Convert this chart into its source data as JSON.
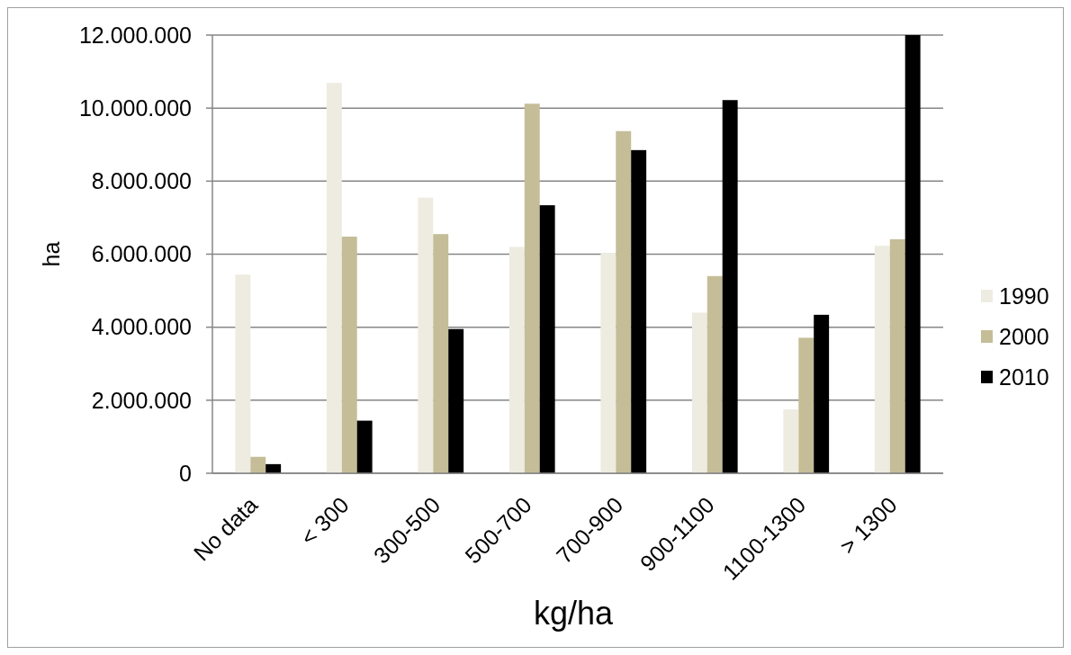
{
  "chart_data": {
    "type": "bar",
    "xlabel": "kg/ha",
    "ylabel": "ha",
    "categories": [
      "No data",
      "< 300",
      "300-500",
      "500-700",
      "700-900",
      "900-1100",
      "1100-1300",
      "> 1300"
    ],
    "series": [
      {
        "name": "1990",
        "color": "#eeece1",
        "values": [
          5440000,
          10690000,
          7550000,
          6200000,
          6030000,
          4400000,
          1750000,
          6230000
        ]
      },
      {
        "name": "2000",
        "color": "#c4bd97",
        "values": [
          450000,
          6480000,
          6550000,
          10120000,
          9370000,
          5400000,
          3710000,
          6410000
        ]
      },
      {
        "name": "2010",
        "color": "#000000",
        "values": [
          250000,
          1440000,
          3950000,
          7340000,
          8850000,
          10220000,
          4340000,
          12000000
        ]
      }
    ],
    "ylim": [
      0,
      12000000
    ],
    "yticks": [
      0,
      {
        "value": 2000000,
        "label": "2.000.000"
      },
      {
        "value": 4000000,
        "label": "4.000.000"
      },
      {
        "value": 6000000,
        "label": "6.000.000"
      },
      {
        "value": 8000000,
        "label": "8.000.000"
      },
      {
        "value": 10000000,
        "label": "10.000.000"
      },
      {
        "value": 12000000,
        "label": "12.000.000"
      }
    ],
    "grid": "y",
    "legend": "right"
  }
}
